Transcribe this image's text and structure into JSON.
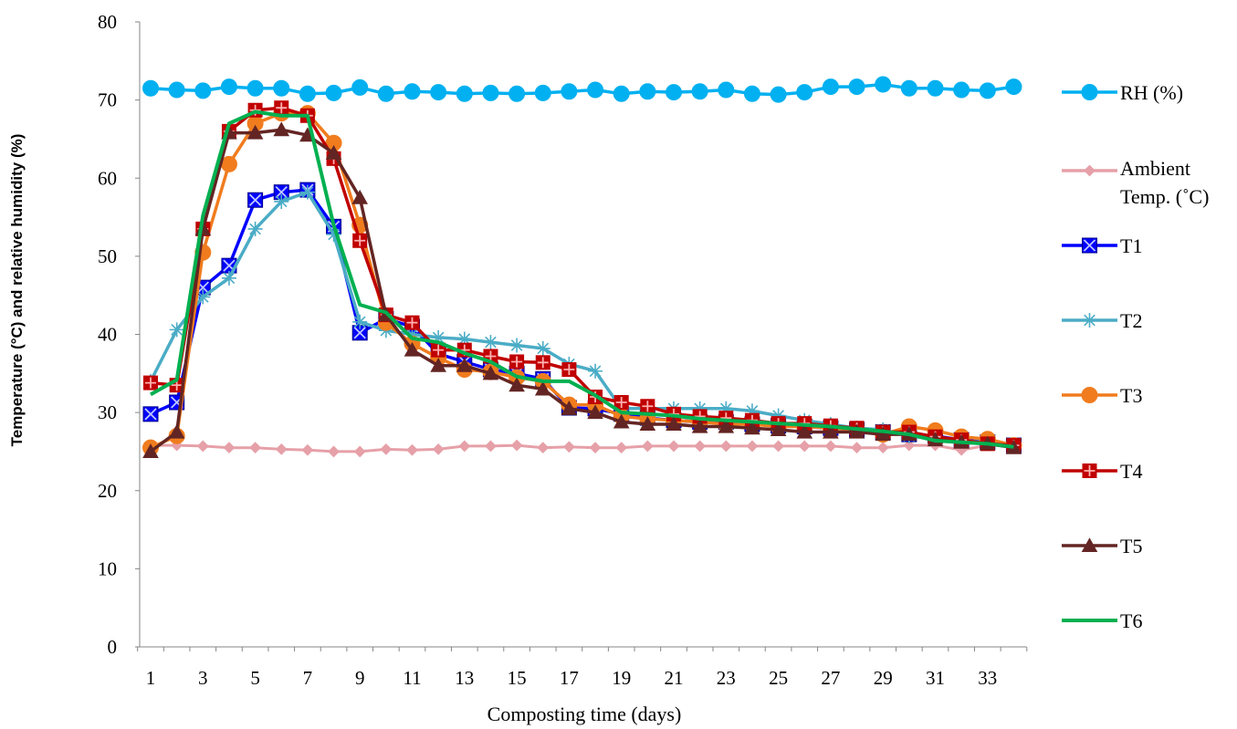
{
  "chart_data": {
    "type": "line",
    "title": "",
    "xlabel": "Composting time (days)",
    "ylabel": "Temperature (°C) and relative humidity (%)",
    "ylim": [
      0,
      80
    ],
    "xlim": [
      1,
      34
    ],
    "yticks": [
      0,
      10,
      20,
      30,
      40,
      50,
      60,
      70,
      80
    ],
    "xticks": [
      1,
      3,
      5,
      7,
      9,
      11,
      13,
      15,
      17,
      19,
      21,
      23,
      25,
      27,
      29,
      31,
      33
    ],
    "x": [
      1,
      2,
      3,
      4,
      5,
      6,
      7,
      8,
      9,
      10,
      11,
      12,
      13,
      14,
      15,
      16,
      17,
      18,
      19,
      20,
      21,
      22,
      23,
      24,
      25,
      26,
      27,
      28,
      29,
      30,
      31,
      32,
      33,
      34
    ],
    "grid": false,
    "legend_position": "right",
    "series": [
      {
        "name": "RH (%)",
        "color": "#00b0f0",
        "marker": "circle",
        "values": [
          71.5,
          71.3,
          71.2,
          71.7,
          71.5,
          71.5,
          70.8,
          70.9,
          71.6,
          70.8,
          71.1,
          71.0,
          70.8,
          70.9,
          70.8,
          70.9,
          71.1,
          71.3,
          70.8,
          71.1,
          71.0,
          71.1,
          71.3,
          70.8,
          70.7,
          71.0,
          71.7,
          71.7,
          72.0,
          71.5,
          71.5,
          71.3,
          71.2,
          71.7
        ]
      },
      {
        "name": "Ambient Temp. (˚C)",
        "color": "#e6a0a8",
        "marker": "diamond",
        "values": [
          25.8,
          25.8,
          25.7,
          25.5,
          25.5,
          25.3,
          25.2,
          25.0,
          25.0,
          25.3,
          25.2,
          25.3,
          25.7,
          25.7,
          25.8,
          25.5,
          25.6,
          25.5,
          25.5,
          25.7,
          25.7,
          25.7,
          25.7,
          25.7,
          25.7,
          25.7,
          25.7,
          25.5,
          25.5,
          25.8,
          25.8,
          25.2,
          25.8,
          25.8
        ]
      },
      {
        "name": "T1",
        "color": "#0000ff",
        "marker": "square-x",
        "values": [
          29.8,
          31.3,
          46.0,
          48.8,
          57.2,
          58.2,
          58.5,
          53.8,
          40.2,
          42.0,
          41.0,
          37.5,
          36.5,
          35.5,
          35.0,
          34.3,
          30.6,
          30.5,
          29.8,
          29.3,
          29.0,
          28.8,
          28.8,
          28.5,
          28.3,
          28.2,
          28.0,
          27.8,
          27.5,
          27.2,
          27.0,
          26.5,
          26.2,
          25.8
        ]
      },
      {
        "name": "T2",
        "color": "#4bacc6",
        "marker": "star",
        "values": [
          34.0,
          40.6,
          44.8,
          47.2,
          53.5,
          57.0,
          58.2,
          52.8,
          41.6,
          40.5,
          40.0,
          39.6,
          39.4,
          39.0,
          38.6,
          38.2,
          36.2,
          35.3,
          30.5,
          30.5,
          30.5,
          30.5,
          30.5,
          30.2,
          29.6,
          29.0,
          28.5,
          28.0,
          27.8,
          27.0,
          26.6,
          26.4,
          26.2,
          25.8
        ]
      },
      {
        "name": "T3",
        "color": "#f07c1e",
        "marker": "circle",
        "values": [
          25.5,
          27.0,
          50.5,
          61.8,
          67.0,
          68.3,
          68.3,
          64.5,
          54.0,
          41.5,
          38.8,
          37.0,
          35.5,
          35.2,
          34.5,
          34.0,
          31.0,
          31.0,
          29.5,
          29.2,
          29.0,
          28.8,
          28.5,
          28.5,
          28.2,
          28.2,
          28.0,
          27.8,
          27.2,
          28.2,
          27.7,
          26.9,
          26.6,
          25.8
        ]
      },
      {
        "name": "T4",
        "color": "#c00000",
        "marker": "square-plus",
        "values": [
          33.8,
          33.5,
          53.5,
          66.0,
          68.7,
          69.0,
          68.0,
          62.5,
          52.0,
          42.5,
          41.5,
          38.0,
          38.0,
          37.2,
          36.5,
          36.4,
          35.5,
          32.0,
          31.3,
          30.8,
          29.8,
          29.5,
          29.3,
          29.0,
          28.6,
          28.6,
          28.3,
          28.0,
          27.5,
          27.5,
          26.9,
          26.5,
          26.0,
          25.8
        ]
      },
      {
        "name": "T5",
        "color": "#632523",
        "marker": "triangle",
        "values": [
          25.0,
          27.5,
          53.5,
          65.8,
          65.8,
          66.2,
          65.5,
          63.2,
          57.5,
          42.5,
          38.0,
          36.0,
          36.0,
          35.0,
          33.5,
          33.0,
          30.5,
          30.0,
          28.8,
          28.5,
          28.5,
          28.2,
          28.2,
          28.0,
          27.8,
          27.5,
          27.5,
          27.5,
          27.2,
          27.2,
          26.5,
          26.2,
          26.0,
          25.5
        ]
      },
      {
        "name": "T6",
        "color": "#00b050",
        "marker": "dash",
        "values": [
          32.3,
          34.2,
          55.2,
          67.0,
          68.5,
          68.0,
          68.0,
          54.0,
          43.8,
          42.8,
          39.5,
          39.0,
          37.6,
          36.5,
          34.6,
          34.0,
          34.0,
          32.2,
          30.0,
          29.8,
          29.6,
          29.2,
          29.0,
          28.8,
          28.6,
          28.4,
          28.2,
          27.9,
          27.6,
          27.2,
          26.4,
          26.2,
          26.0,
          25.6
        ]
      }
    ]
  }
}
